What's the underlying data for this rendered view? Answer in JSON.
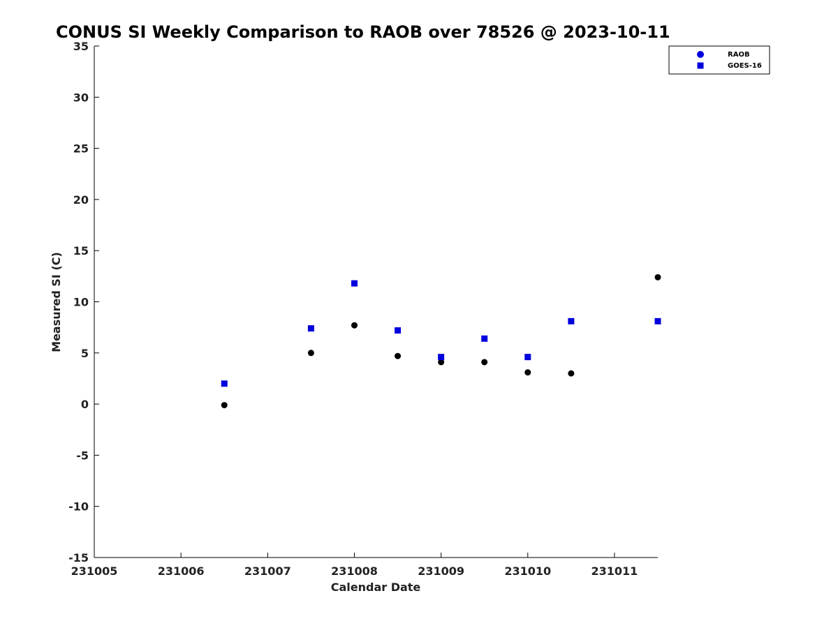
{
  "chart_data": {
    "type": "scatter",
    "title": "CONUS SI Weekly Comparison to RAOB over 78526 @ 2023-10-11",
    "xlabel": "Calendar Date",
    "ylabel": "Measured SI (C)",
    "xlim": [
      "231005",
      "231011.5"
    ],
    "ylim": [
      -15,
      35
    ],
    "x_ticks": [
      "231005",
      "231006",
      "231007",
      "231008",
      "231009",
      "231010",
      "231011"
    ],
    "y_ticks": [
      -15,
      -10,
      -5,
      0,
      5,
      10,
      15,
      20,
      25,
      30,
      35
    ],
    "grid": false,
    "legend_position": "top-right",
    "series": [
      {
        "name": "RAOB",
        "marker": "circle",
        "color": "#000000",
        "legend_color": "#0000dd",
        "x": [
          231006.5,
          231007.5,
          231008.0,
          231008.5,
          231009.0,
          231009.5,
          231010.0,
          231010.5,
          231011.5
        ],
        "values": [
          -0.1,
          5.0,
          7.7,
          4.7,
          4.1,
          4.1,
          3.1,
          3.0,
          12.4
        ]
      },
      {
        "name": "GOES-16",
        "marker": "square",
        "color": "#0000dd",
        "legend_color": "#0000dd",
        "x": [
          231006.5,
          231007.5,
          231008.0,
          231008.5,
          231009.0,
          231009.5,
          231010.0,
          231010.5,
          231011.5
        ],
        "values": [
          2.0,
          7.4,
          11.8,
          7.2,
          4.6,
          6.4,
          4.6,
          8.1,
          8.1
        ]
      }
    ]
  }
}
